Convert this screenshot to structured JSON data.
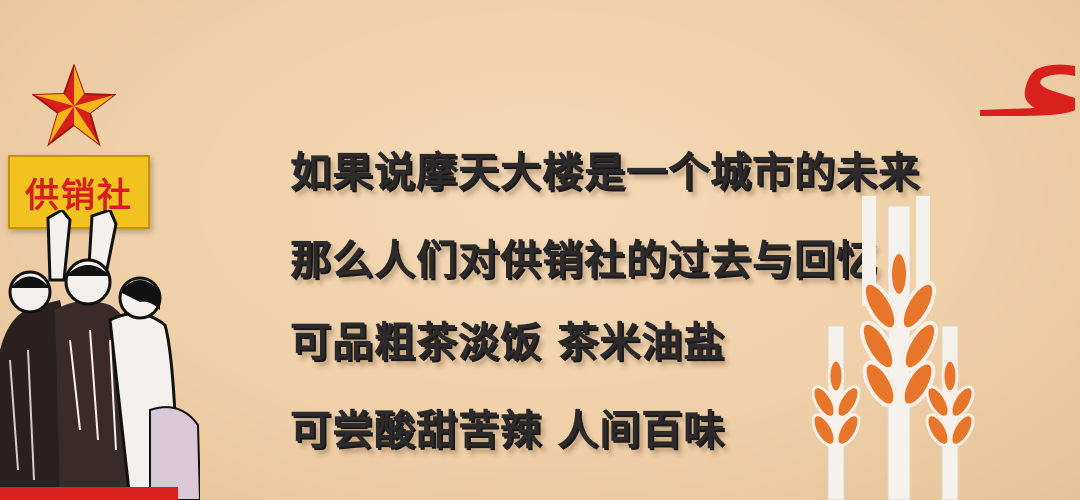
{
  "poem": {
    "line1": "如果说摩天大楼是一个城市的未来",
    "line2": "那么人们对供销社的过去与回忆",
    "line3": "可品粗茶淡饭  茶米油盐",
    "line4": "可尝酸甜苦辣  人间百味"
  },
  "sign": {
    "label": "供销社"
  },
  "colors": {
    "wall": "#efd0a8",
    "text": "#2c2a2a",
    "sign_bg": "#f2c21e",
    "sign_text": "#d41f1a",
    "star": "#d41f1a",
    "wheat": "#e8762a",
    "logo": "#d8201c"
  }
}
